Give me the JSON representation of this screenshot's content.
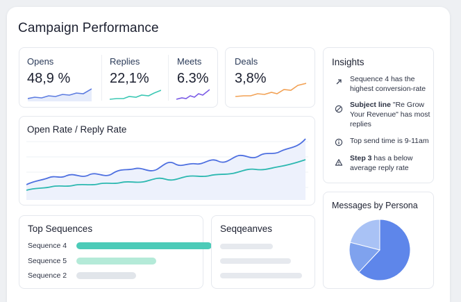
{
  "page": {
    "title": "Campaign Performance"
  },
  "kpis": [
    {
      "label": "Opens",
      "value": "48,9 %",
      "color": "#5b7be0"
    },
    {
      "label": "Replies",
      "value": "22,1%",
      "color": "#3cc8b4"
    },
    {
      "label": "Meets",
      "value": "6.3%",
      "color": "#7a5ae6"
    },
    {
      "label": "Deals",
      "value": "3,8%",
      "color": "#f2a154"
    }
  ],
  "rate_chart": {
    "title": "Open Rate / Reply Rate",
    "series": [
      {
        "name": "Open Rate",
        "color": "#4d6fe0"
      },
      {
        "name": "Reply Rate",
        "color": "#2cb8b0"
      }
    ]
  },
  "insights": {
    "title": "Insights",
    "items": [
      {
        "icon": "trend-up-icon",
        "bold": "",
        "text": "Sequence 4 has the highest conversion-rate"
      },
      {
        "icon": "no-entry-icon",
        "bold": "Subject line",
        "text": " \"Re Grow Your Revenue\" has most replies"
      },
      {
        "icon": "info-icon",
        "bold": "",
        "text": "Top send time is 9-11am"
      },
      {
        "icon": "warning-icon",
        "bold": "Step 3",
        "text": " has a below average reply rate"
      }
    ]
  },
  "top_sequences": {
    "title": "Top Sequences",
    "items": [
      {
        "label": "Sequence 4",
        "value": 1.0,
        "color": "#4ccbb8"
      },
      {
        "label": "Sequence 5",
        "value": 0.59,
        "color": "#b4ead8"
      },
      {
        "label": "Sequence 2",
        "value": 0.44,
        "color": "#e1e5ea"
      }
    ]
  },
  "sequences_card": {
    "title": "Seqqeanves"
  },
  "persona": {
    "title": "Messages by Persona",
    "chart_data": {
      "type": "pie",
      "title": "Messages by Persona",
      "slices": [
        {
          "label": "",
          "value": 62,
          "color": "#5e86ea"
        },
        {
          "label": "",
          "value": 17,
          "color": "#7fa2ee"
        },
        {
          "label": "",
          "value": 21,
          "color": "#a9c2f5"
        }
      ]
    }
  }
}
